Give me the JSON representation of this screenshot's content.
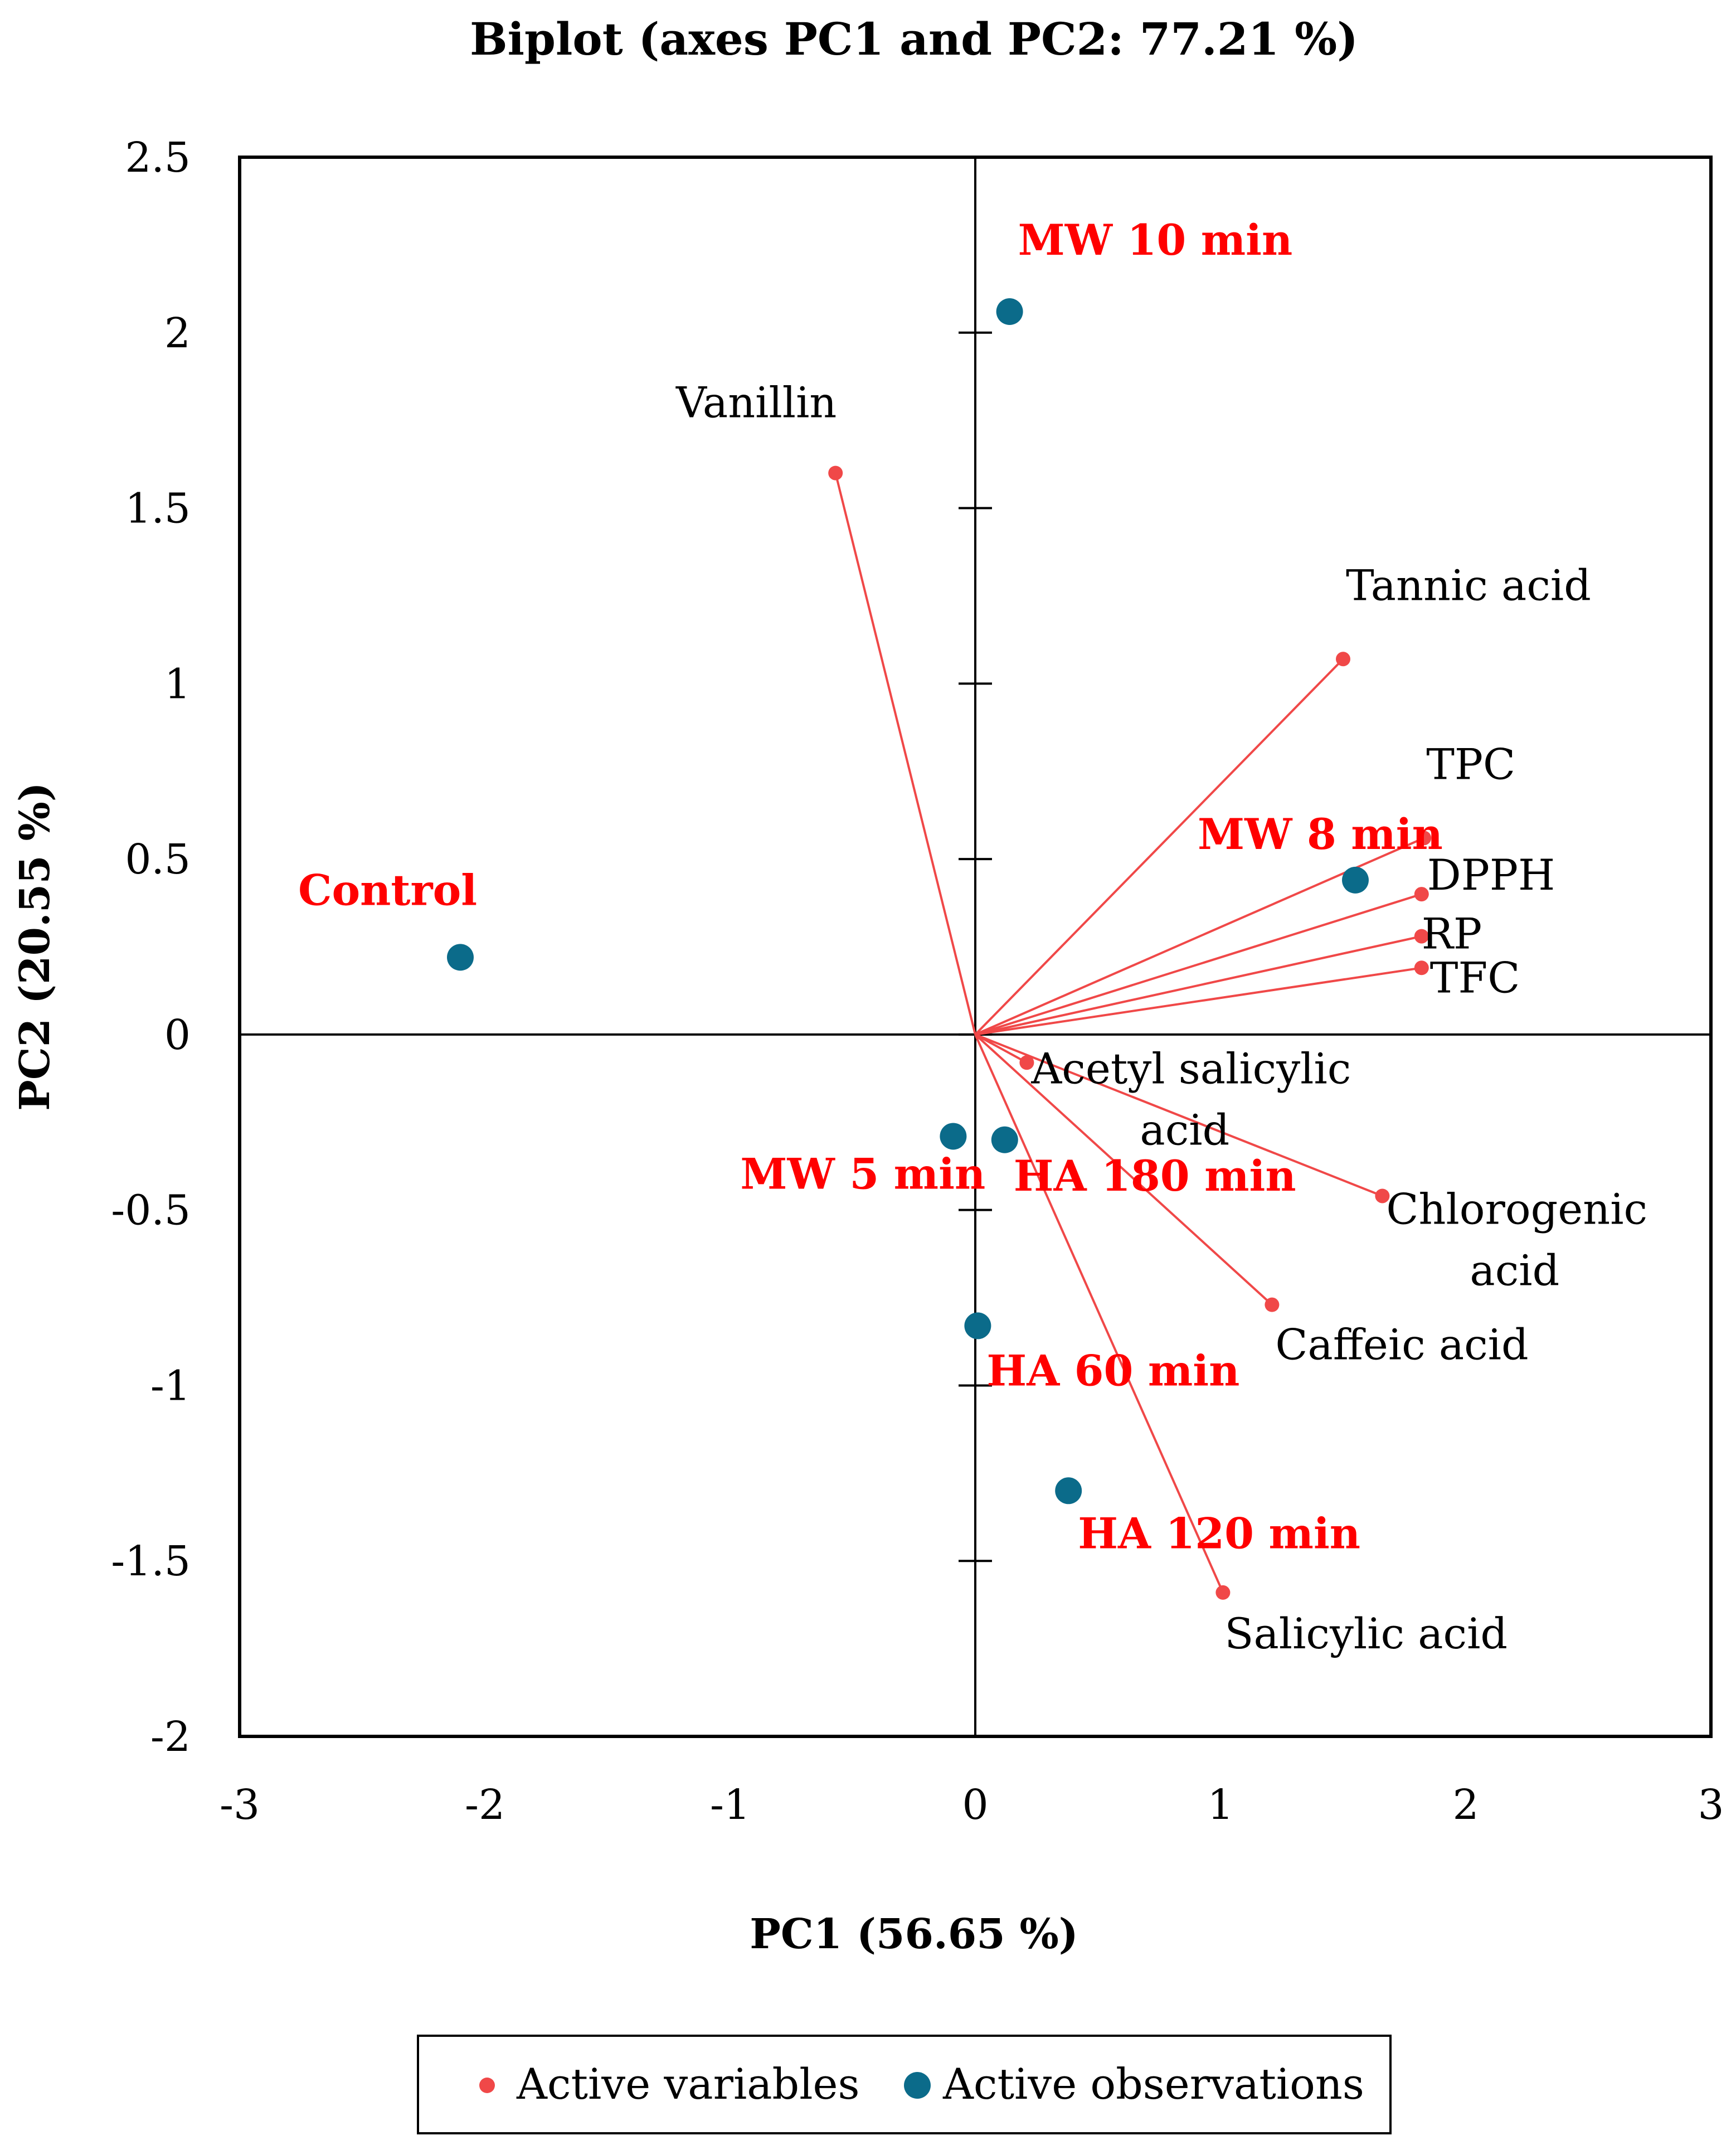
{
  "chart_data": {
    "type": "scatter",
    "title": "Biplot (axes PC1 and PC2: 77.21 %)",
    "xlabel": "PC1 (56.65 %)",
    "ylabel": "PC2 (20.55 %)",
    "xlim": [
      -3,
      3
    ],
    "ylim": [
      -2,
      2.5
    ],
    "x_ticks": [
      "-3",
      "-2",
      "-1",
      "0",
      "1",
      "2",
      "3"
    ],
    "y_ticks": [
      "2.5",
      "2",
      "1.5",
      "1",
      "0.5",
      "0",
      "-0.5",
      "-1",
      "-1.5",
      "-2"
    ],
    "grid": false,
    "colors": {
      "variables": "#f04848",
      "observations": "#0b6b8a",
      "observation_labels": "#ff0000"
    },
    "series": [
      {
        "name": "Active variables",
        "points": [
          {
            "label": "Vanillin",
            "x": -0.57,
            "y": 1.6
          },
          {
            "label": "Tannic acid",
            "x": 1.5,
            "y": 1.07
          },
          {
            "label": "TPC",
            "x": 1.83,
            "y": 0.56
          },
          {
            "label": "DPPH",
            "x": 1.82,
            "y": 0.4
          },
          {
            "label": "RP",
            "x": 1.82,
            "y": 0.28
          },
          {
            "label": "TFC",
            "x": 1.82,
            "y": 0.19
          },
          {
            "label": "Acetyl salicylic acid",
            "label_lines": [
              "Acetyl salicylic",
              "acid"
            ],
            "x": 0.21,
            "y": -0.08
          },
          {
            "label": "Chlorogenic acid",
            "label_lines": [
              "Chlorogenic",
              "acid"
            ],
            "x": 1.66,
            "y": -0.46
          },
          {
            "label": "Caffeic acid",
            "x": 1.21,
            "y": -0.77
          },
          {
            "label": "Salicylic acid",
            "x": 1.01,
            "y": -1.59
          }
        ]
      },
      {
        "name": "Active observations",
        "points": [
          {
            "label": "MW 10 min",
            "x": 0.14,
            "y": 2.06
          },
          {
            "label": "Control",
            "x": -2.1,
            "y": 0.22
          },
          {
            "label": "MW 8 min",
            "x": 1.55,
            "y": 0.44
          },
          {
            "label": "MW 5 min",
            "x": -0.09,
            "y": -0.29
          },
          {
            "label": "HA 180 min",
            "x": 0.12,
            "y": -0.3
          },
          {
            "label": "HA 60 min",
            "x": 0.01,
            "y": -0.83
          },
          {
            "label": "HA 120 min",
            "x": 0.38,
            "y": -1.3
          }
        ]
      }
    ],
    "legend": {
      "position": "bottom",
      "entries": [
        "Active variables",
        "Active observations"
      ]
    }
  }
}
